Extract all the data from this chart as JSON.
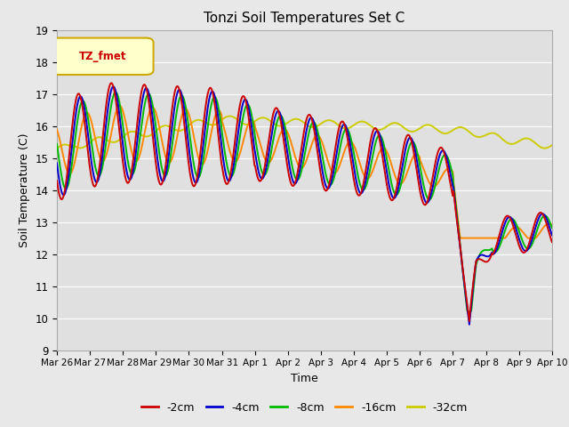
{
  "title": "Tonzi Soil Temperatures Set C",
  "xlabel": "Time",
  "ylabel": "Soil Temperature (C)",
  "ylim": [
    9.0,
    19.0
  ],
  "yticks": [
    9.0,
    10.0,
    11.0,
    12.0,
    13.0,
    14.0,
    15.0,
    16.0,
    17.0,
    18.0,
    19.0
  ],
  "xtick_labels": [
    "Mar 26",
    "Mar 27",
    "Mar 28",
    "Mar 29",
    "Mar 30",
    "Mar 31",
    "Apr 1",
    "Apr 2",
    "Apr 3",
    "Apr 4",
    "Apr 5",
    "Apr 6",
    "Apr 7",
    "Apr 8",
    "Apr 9",
    "Apr 10"
  ],
  "colors": {
    "-2cm": "#cc0000",
    "-4cm": "#0000cc",
    "-8cm": "#00bb00",
    "-16cm": "#ff8800",
    "-32cm": "#cccc00"
  },
  "legend_label": "TZ_fmet",
  "fig_bg": "#e8e8e8",
  "plot_bg": "#e0e0e0"
}
